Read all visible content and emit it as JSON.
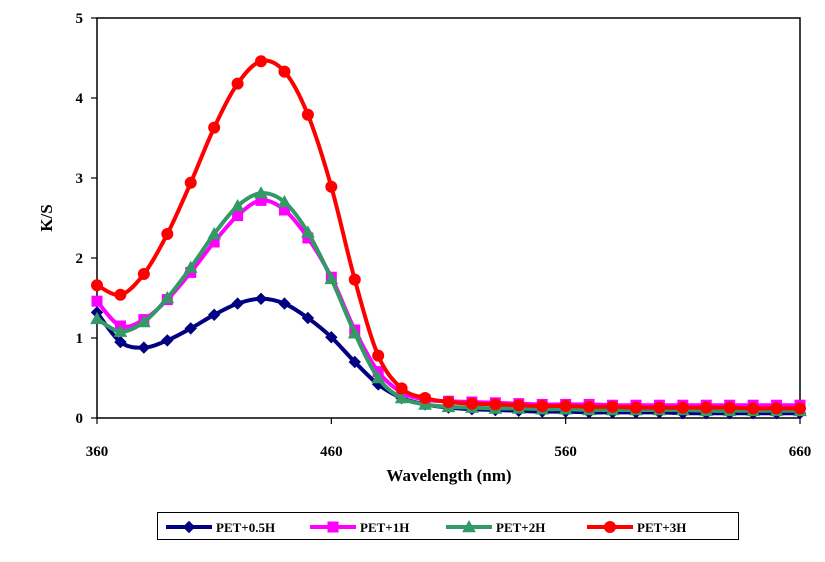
{
  "chart_data": {
    "type": "line",
    "title": "",
    "xlabel": "Wavelength (nm)",
    "ylabel": "K/S",
    "xlim": [
      360,
      660
    ],
    "ylim": [
      0,
      5
    ],
    "xticks": [
      "360",
      "460",
      "560",
      "660"
    ],
    "yticks": [
      "0",
      "1",
      "2",
      "3",
      "4",
      "5"
    ],
    "grid": false,
    "legend_position": "bottom",
    "x": [
      360,
      370,
      380,
      390,
      400,
      410,
      420,
      430,
      440,
      450,
      460,
      470,
      480,
      490,
      500,
      510,
      520,
      530,
      540,
      550,
      560,
      570,
      580,
      590,
      600,
      610,
      620,
      630,
      640,
      650,
      660
    ],
    "series": [
      {
        "name": "PET+0.5H",
        "color": "#000080",
        "marker": "diamond",
        "values": [
          1.32,
          0.95,
          0.88,
          0.97,
          1.12,
          1.29,
          1.43,
          1.49,
          1.43,
          1.25,
          1.01,
          0.7,
          0.42,
          0.25,
          0.17,
          0.13,
          0.11,
          0.1,
          0.09,
          0.08,
          0.08,
          0.07,
          0.07,
          0.07,
          0.07,
          0.06,
          0.06,
          0.06,
          0.06,
          0.06,
          0.06
        ]
      },
      {
        "name": "PET+1H",
        "color": "#ff00ff",
        "marker": "square",
        "values": [
          1.46,
          1.15,
          1.23,
          1.48,
          1.82,
          2.2,
          2.53,
          2.72,
          2.6,
          2.25,
          1.76,
          1.1,
          0.58,
          0.32,
          0.23,
          0.21,
          0.2,
          0.19,
          0.18,
          0.17,
          0.17,
          0.17,
          0.16,
          0.16,
          0.16,
          0.16,
          0.16,
          0.16,
          0.16,
          0.16,
          0.16
        ]
      },
      {
        "name": "PET+2H",
        "color": "#339966",
        "marker": "triangle",
        "values": [
          1.24,
          1.08,
          1.2,
          1.5,
          1.88,
          2.3,
          2.65,
          2.81,
          2.7,
          2.32,
          1.74,
          1.06,
          0.5,
          0.25,
          0.17,
          0.14,
          0.13,
          0.12,
          0.12,
          0.11,
          0.11,
          0.1,
          0.1,
          0.1,
          0.1,
          0.1,
          0.09,
          0.09,
          0.09,
          0.09,
          0.09
        ]
      },
      {
        "name": "PET+3H",
        "color": "#ff0000",
        "marker": "circle",
        "values": [
          1.66,
          1.54,
          1.8,
          2.3,
          2.94,
          3.63,
          4.18,
          4.46,
          4.33,
          3.79,
          2.89,
          1.73,
          0.78,
          0.37,
          0.25,
          0.2,
          0.18,
          0.17,
          0.16,
          0.15,
          0.15,
          0.14,
          0.14,
          0.13,
          0.13,
          0.13,
          0.13,
          0.13,
          0.12,
          0.12,
          0.12
        ]
      }
    ]
  }
}
